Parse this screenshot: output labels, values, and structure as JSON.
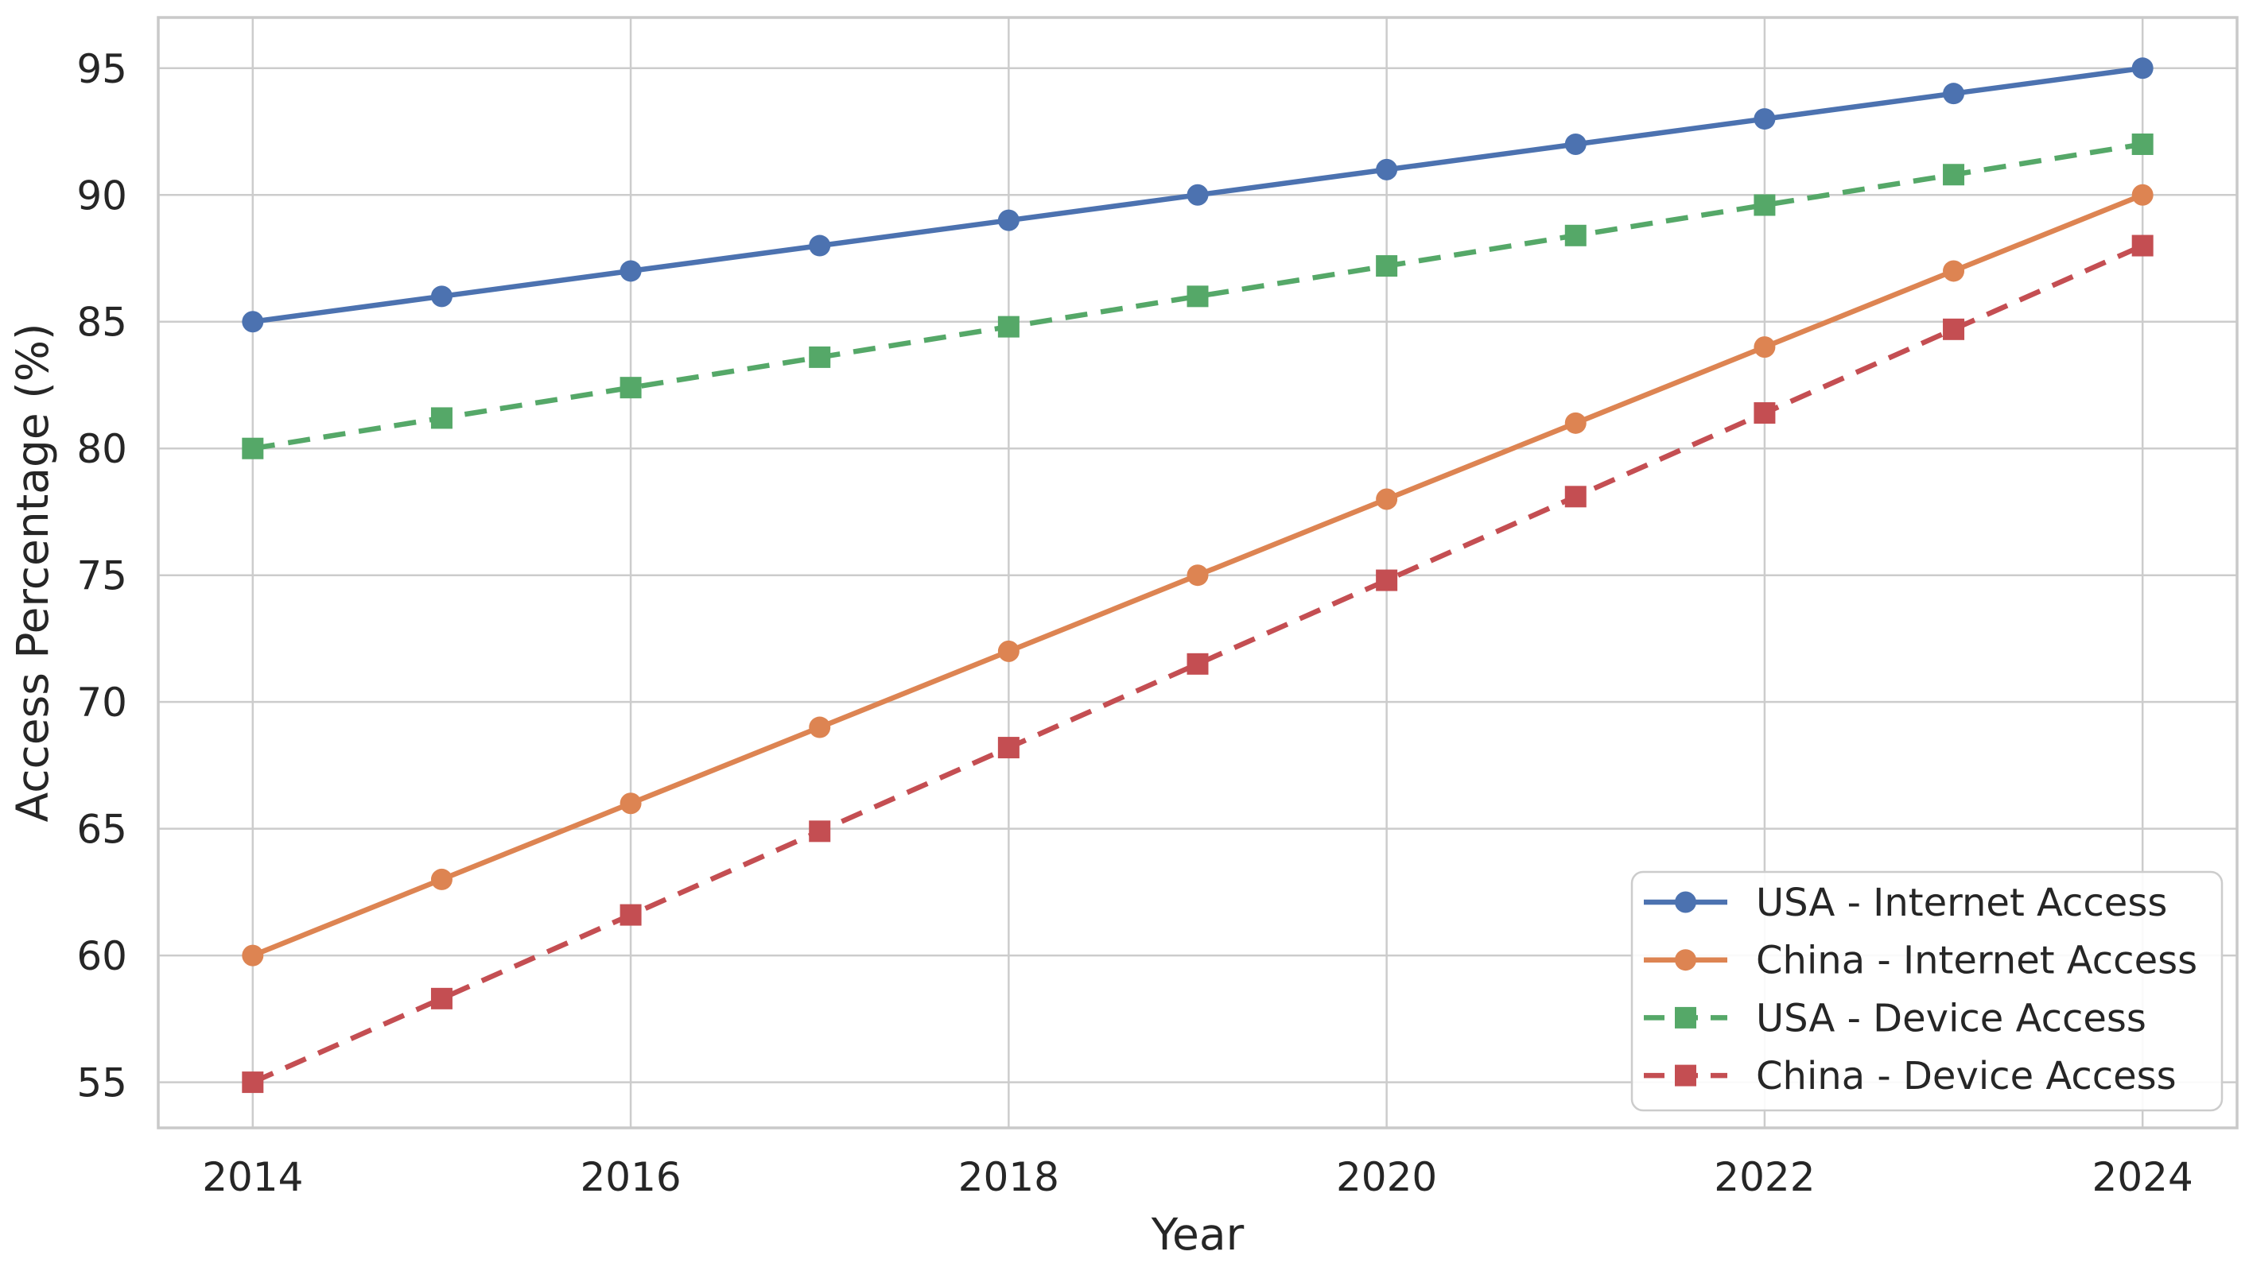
{
  "figure": {
    "background": "#ffffff"
  },
  "chart_data": {
    "type": "line",
    "title": "",
    "xlabel": "Year",
    "ylabel": "Access Percentage (%)",
    "x": [
      2014,
      2015,
      2016,
      2017,
      2018,
      2019,
      2020,
      2021,
      2022,
      2023,
      2024
    ],
    "xticks": [
      2014,
      2016,
      2018,
      2020,
      2022,
      2024
    ],
    "yticks": [
      55,
      60,
      65,
      70,
      75,
      80,
      85,
      90,
      95
    ],
    "xlim": [
      2013.5,
      2024.5
    ],
    "ylim": [
      53.2,
      97
    ],
    "grid": true,
    "legend_position": "lower-right-inside",
    "series": [
      {
        "name": "USA - Internet Access",
        "values": [
          85,
          86,
          87,
          88,
          89,
          90,
          91,
          92,
          93,
          94,
          95
        ],
        "color": "#4C72B0",
        "line_style": "solid",
        "marker": "circle"
      },
      {
        "name": "China - Internet Access",
        "values": [
          60,
          63,
          66,
          69,
          72,
          75,
          78,
          81,
          84,
          87,
          90
        ],
        "color": "#DD8452",
        "line_style": "solid",
        "marker": "circle"
      },
      {
        "name": "USA - Device Access",
        "values": [
          80,
          81.2,
          82.4,
          83.6,
          84.8,
          86,
          87.2,
          88.4,
          89.6,
          90.8,
          92
        ],
        "color": "#55A868",
        "line_style": "dashed",
        "marker": "square"
      },
      {
        "name": "China - Device Access",
        "values": [
          55,
          58.3,
          61.6,
          64.9,
          68.2,
          71.5,
          74.8,
          78.1,
          81.4,
          84.7,
          88
        ],
        "color": "#C44E52",
        "line_style": "dashed",
        "marker": "square"
      }
    ],
    "colors": {
      "grid": "#cccccc",
      "spine": "#c9c9c9",
      "text": "#262626",
      "legend_border": "#cccccc",
      "legend_background": "#ffffff"
    }
  }
}
